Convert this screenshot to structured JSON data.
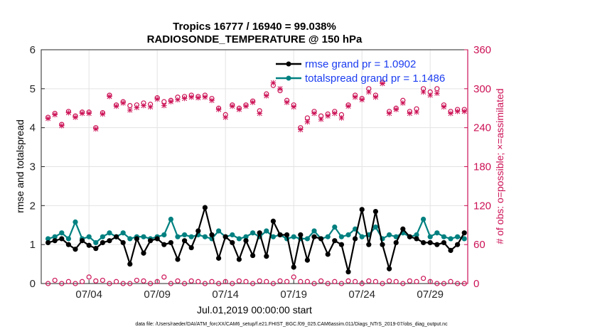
{
  "chart_data": {
    "type": "line",
    "title": "Tropics 16777 / 16940 = 99.038%",
    "subtitle": "RADIOSONDE_TEMPERATURE @ 150 hPa",
    "xlabel": "Jul.01,2019 00:00:00 start",
    "ylabel_left": "rmse and totalspread",
    "ylabel_right": "# of obs: o=possible; ×=assimilated",
    "ylim_left": [
      0,
      6
    ],
    "ylim_right": [
      0,
      360
    ],
    "xlim": [
      0.5,
      31.75
    ],
    "xticks": [
      {
        "value": 4,
        "label": "07/04"
      },
      {
        "value": 9,
        "label": "07/09"
      },
      {
        "value": 14,
        "label": "07/14"
      },
      {
        "value": 19,
        "label": "07/19"
      },
      {
        "value": 24,
        "label": "07/24"
      },
      {
        "value": 29,
        "label": "07/29"
      }
    ],
    "yticks_left": [
      "0",
      "1",
      "2",
      "3",
      "4",
      "5",
      "6"
    ],
    "yticks_right": [
      "0",
      "60",
      "120",
      "180",
      "240",
      "300",
      "360"
    ],
    "grid": true,
    "x": [
      1.0,
      1.5,
      2.0,
      2.5,
      3.0,
      3.5,
      4.0,
      4.5,
      5.0,
      5.5,
      6.0,
      6.5,
      7.0,
      7.5,
      8.0,
      8.5,
      9.0,
      9.5,
      10.0,
      10.5,
      11.0,
      11.5,
      12.0,
      12.5,
      13.0,
      13.5,
      14.0,
      14.5,
      15.0,
      15.5,
      16.0,
      16.5,
      17.0,
      17.5,
      18.0,
      18.5,
      19.0,
      19.5,
      20.0,
      20.5,
      21.0,
      21.5,
      22.0,
      22.5,
      23.0,
      23.5,
      24.0,
      24.5,
      25.0,
      25.5,
      26.0,
      26.5,
      27.0,
      27.5,
      28.0,
      28.5,
      29.0,
      29.5,
      30.0,
      30.5,
      31.0,
      31.5
    ],
    "series": [
      {
        "name": "rmse",
        "legend": "rmse grand pr = 1.0902",
        "color": "#000000",
        "values": [
          1.05,
          1.1,
          1.15,
          1.0,
          0.88,
          1.1,
          0.98,
          0.9,
          1.05,
          1.1,
          1.2,
          1.05,
          0.5,
          1.15,
          0.78,
          1.1,
          1.15,
          1.0,
          1.05,
          0.62,
          1.1,
          0.92,
          1.35,
          1.95,
          1.25,
          0.65,
          1.2,
          1.05,
          0.62,
          1.1,
          0.72,
          1.3,
          0.7,
          1.6,
          1.25,
          1.25,
          0.42,
          1.25,
          0.6,
          1.2,
          1.15,
          0.75,
          1.1,
          1.0,
          0.3,
          1.15,
          1.9,
          1.0,
          1.85,
          1.0,
          0.38,
          1.05,
          1.4,
          1.2,
          1.15,
          1.05,
          1.05,
          1.0,
          1.05,
          0.85,
          1.0,
          1.3
        ]
      },
      {
        "name": "totalspread",
        "legend": "totalspread grand pr = 1.1486",
        "color": "#008080",
        "values": [
          1.15,
          1.2,
          1.3,
          1.15,
          1.58,
          1.15,
          1.2,
          1.05,
          1.2,
          1.3,
          1.2,
          1.3,
          1.15,
          1.2,
          1.2,
          1.15,
          1.2,
          1.25,
          1.65,
          1.2,
          1.25,
          1.2,
          1.25,
          1.2,
          1.15,
          1.35,
          1.2,
          1.25,
          1.15,
          1.2,
          1.3,
          1.2,
          1.35,
          1.2,
          1.25,
          1.15,
          1.2,
          1.15,
          1.15,
          1.35,
          1.15,
          1.2,
          1.45,
          1.2,
          1.25,
          1.4,
          1.2,
          1.25,
          1.45,
          1.15,
          1.25,
          1.2,
          1.3,
          1.2,
          1.25,
          1.65,
          1.2,
          1.3,
          1.2,
          1.15,
          1.2,
          1.15
        ]
      },
      {
        "name": "obs_possible",
        "axis": "right",
        "marker": "o",
        "color": "#cc1155",
        "values": [
          256,
          262,
          245,
          265,
          258,
          264,
          264,
          240,
          263,
          290,
          275,
          280,
          274,
          275,
          278,
          276,
          286,
          280,
          282,
          287,
          288,
          290,
          288,
          290,
          285,
          270,
          260,
          275,
          270,
          275,
          281,
          266,
          292,
          305,
          297,
          282,
          275,
          240,
          255,
          265,
          258,
          261,
          265,
          260,
          275,
          290,
          285,
          300,
          290,
          310,
          265,
          270,
          282,
          265,
          269,
          300,
          295,
          300,
          275,
          265,
          268,
          268
        ]
      },
      {
        "name": "obs_assimilated",
        "axis": "right",
        "marker": "x",
        "color": "#cc1155",
        "values": [
          254,
          260,
          243,
          263,
          256,
          262,
          262,
          238,
          261,
          288,
          273,
          278,
          267,
          271,
          274,
          272,
          284,
          274,
          280,
          283,
          285,
          287,
          286,
          287,
          282,
          268,
          256,
          273,
          268,
          273,
          279,
          262,
          289,
          309,
          300,
          279,
          272,
          237,
          249,
          262,
          253,
          258,
          262,
          255,
          273,
          287,
          283,
          295,
          287,
          308,
          262,
          268,
          278,
          262,
          264,
          295,
          290,
          293,
          272,
          262,
          265,
          265
        ]
      },
      {
        "name": "obs_possible_low",
        "axis": "right",
        "marker": "o",
        "color": "#cc1155",
        "values": [
          0,
          5,
          0,
          3,
          0,
          3,
          10,
          4,
          5,
          0,
          3,
          0,
          0,
          5,
          4,
          0,
          3,
          10,
          0,
          4,
          0,
          4,
          3,
          0,
          3,
          0,
          3,
          0,
          4,
          3,
          0,
          4,
          3,
          0,
          4,
          3,
          10,
          3,
          3,
          0,
          4,
          0,
          3,
          0,
          4,
          3,
          0,
          4,
          3,
          0,
          4,
          3,
          0,
          4,
          3,
          8,
          3,
          0,
          0,
          3,
          0,
          0
        ]
      }
    ]
  },
  "footer": "data file: /Users/raeder/DAI/ATM_forcXX/CAM6_setup/f.e21.FHIST_BGC.f09_025.CAM6assim.011/Diags_NTrS_2019-07/obs_diag_output.nc"
}
